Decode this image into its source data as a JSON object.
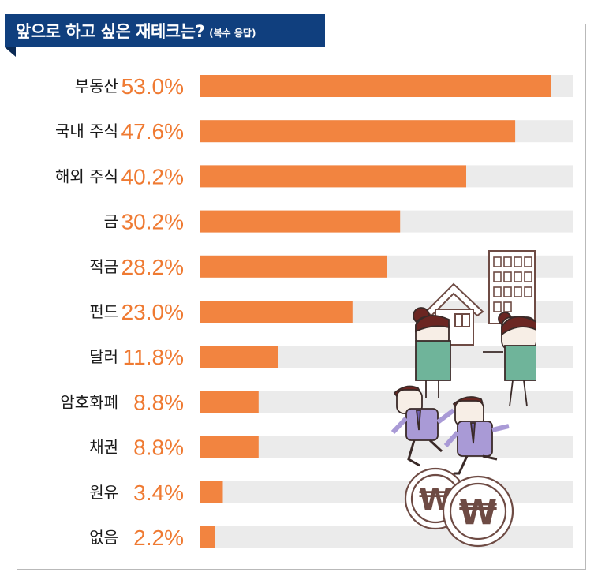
{
  "title": {
    "main": "앞으로 하고 싶은 재테크는?",
    "sub": "(복수 응답)"
  },
  "colors": {
    "title_bg": "#103f7e",
    "bar": "#f28440",
    "track": "#ebebeb",
    "value_text": "#ef7a32"
  },
  "chart_data": {
    "type": "bar",
    "orientation": "horizontal",
    "title": "앞으로 하고 싶은 재테크는?",
    "subtitle": "(복수 응답)",
    "categories": [
      "부동산",
      "국내 주식",
      "해외 주식",
      "금",
      "적금",
      "펀드",
      "달러",
      "암호화폐",
      "채권",
      "원유",
      "없음"
    ],
    "values": [
      53.0,
      47.6,
      40.2,
      30.2,
      28.2,
      23.0,
      11.8,
      8.8,
      8.8,
      3.4,
      2.2
    ],
    "value_labels": [
      "53.0%",
      "47.6%",
      "40.2%",
      "30.2%",
      "28.2%",
      "23.0%",
      "11.8%",
      "8.8%",
      "8.8%",
      "3.4%",
      "2.2%"
    ],
    "unit": "%",
    "xlim": [
      0,
      56.3
    ],
    "grid": false,
    "legend": "none"
  }
}
